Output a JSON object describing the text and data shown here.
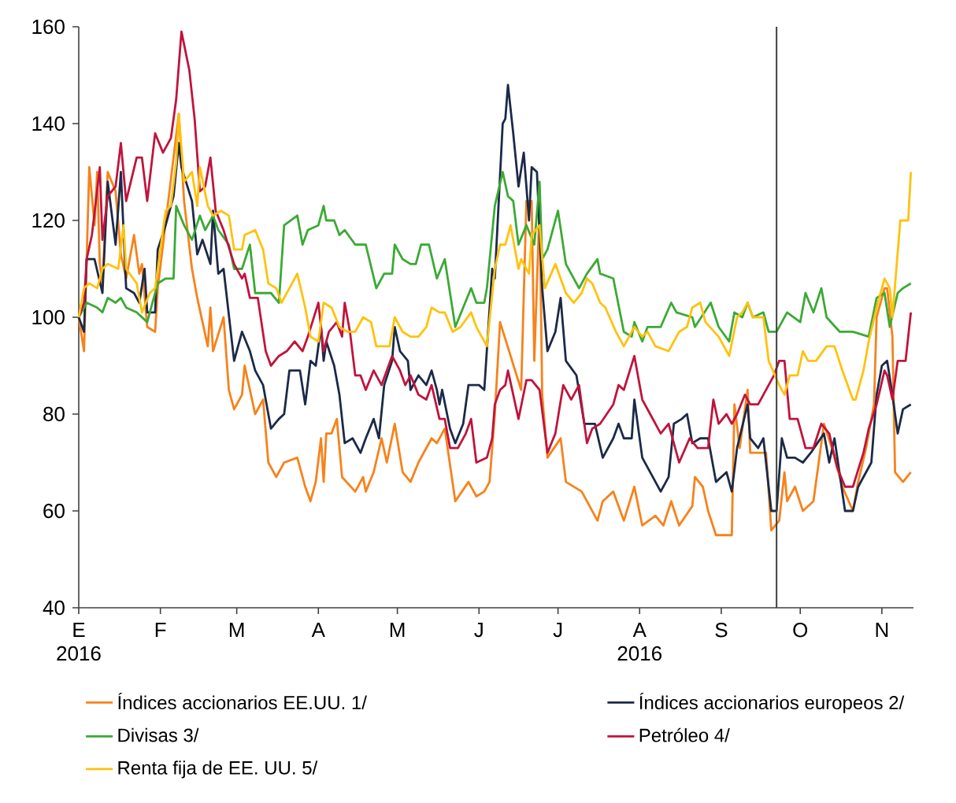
{
  "chart_data": {
    "type": "line",
    "xlim": [
      "2016-01-01",
      "2016-11-13"
    ],
    "ylim": [
      40,
      160
    ],
    "xticks": [
      {
        "value": "2016-01-01",
        "label": "E 2016"
      },
      {
        "value": "2016-02-01",
        "label": "F"
      },
      {
        "value": "2016-03-01",
        "label": "M"
      },
      {
        "value": "2016-04-01",
        "label": "A"
      },
      {
        "value": "2016-05-01",
        "label": "M"
      },
      {
        "value": "2016-06-01",
        "label": "J"
      },
      {
        "value": "2016-07-01",
        "label": "J"
      },
      {
        "value": "2016-08-01",
        "label": "A 2016"
      },
      {
        "value": "2016-09-01",
        "label": "S"
      },
      {
        "value": "2016-10-01",
        "label": "O"
      },
      {
        "value": "2016-11-01",
        "label": "N"
      }
    ],
    "yticks": [
      40,
      60,
      80,
      100,
      120,
      140,
      160
    ],
    "ref_lines": [
      {
        "axis": "x",
        "value": "2016-09-22",
        "color": "#404040"
      }
    ],
    "legend": "bottom",
    "marker": "none",
    "line_style": "solid",
    "series": [
      {
        "name": "Índices accionarios EE.UU. 1/",
        "color": "#f7821b",
        "x": [
          "2016-01-01",
          "2016-01-03",
          "2016-01-05",
          "2016-01-07",
          "2016-01-08",
          "2016-01-09",
          "2016-01-10",
          "2016-01-12",
          "2016-01-15",
          "2016-01-17",
          "2016-01-19",
          "2016-01-22",
          "2016-01-24",
          "2016-01-25",
          "2016-01-27",
          "2016-01-30",
          "2016-01-31",
          "2016-02-04",
          "2016-02-08",
          "2016-02-10",
          "2016-02-13",
          "2016-02-15",
          "2016-02-19",
          "2016-02-20",
          "2016-02-21",
          "2016-02-25",
          "2016-02-27",
          "2016-02-29",
          "2016-03-03",
          "2016-03-04",
          "2016-03-08",
          "2016-03-11",
          "2016-03-13",
          "2016-03-16",
          "2016-03-19",
          "2016-03-24",
          "2016-03-27",
          "2016-03-29",
          "2016-03-31",
          "2016-04-02",
          "2016-04-03",
          "2016-04-04",
          "2016-04-06",
          "2016-04-08",
          "2016-04-10",
          "2016-04-15",
          "2016-04-18",
          "2016-04-19",
          "2016-04-22",
          "2016-04-25",
          "2016-04-27",
          "2016-04-30",
          "2016-05-03",
          "2016-05-06",
          "2016-05-09",
          "2016-05-14",
          "2016-05-16",
          "2016-05-19",
          "2016-05-23",
          "2016-05-28",
          "2016-05-31",
          "2016-06-03",
          "2016-06-05",
          "2016-06-07",
          "2016-06-09",
          "2016-06-13",
          "2016-06-17",
          "2016-06-19",
          "2016-06-21",
          "2016-06-22",
          "2016-06-24",
          "2016-06-25",
          "2016-06-27",
          "2016-07-02",
          "2016-07-04",
          "2016-07-10",
          "2016-07-16",
          "2016-07-18",
          "2016-07-22",
          "2016-07-26",
          "2016-07-30",
          "2016-08-02",
          "2016-08-07",
          "2016-08-10",
          "2016-08-13",
          "2016-08-16",
          "2016-08-21",
          "2016-08-22",
          "2016-08-25",
          "2016-08-27",
          "2016-08-30",
          "2016-09-05",
          "2016-09-06",
          "2016-09-08",
          "2016-09-11",
          "2016-09-12",
          "2016-09-18",
          "2016-09-20",
          "2016-09-23",
          "2016-09-25",
          "2016-09-26",
          "2016-09-29",
          "2016-10-02",
          "2016-10-06",
          "2016-10-10",
          "2016-10-13",
          "2016-10-17",
          "2016-10-21",
          "2016-10-23",
          "2016-10-26",
          "2016-10-29",
          "2016-10-30",
          "2016-11-02",
          "2016-11-03",
          "2016-11-05",
          "2016-11-06",
          "2016-11-09",
          "2016-11-12"
        ],
        "values": [
          100,
          93,
          131,
          119,
          130,
          111,
          107,
          130,
          126,
          113,
          108,
          117,
          109,
          111,
          98,
          97,
          106,
          124,
          142,
          124,
          110,
          104,
          94,
          102,
          93,
          100,
          85,
          81,
          84,
          90,
          80,
          83,
          70,
          67,
          70,
          71,
          65,
          62,
          66,
          75,
          66,
          76,
          76,
          79,
          67,
          64,
          67,
          64,
          68,
          75,
          70,
          78,
          68,
          66,
          70,
          75,
          74,
          77,
          62,
          66,
          63,
          64,
          66,
          80,
          99,
          92,
          85,
          124,
          124,
          91,
          123,
          84,
          71,
          75,
          66,
          64,
          58,
          62,
          64,
          58,
          65,
          57,
          59,
          57,
          62,
          57,
          61,
          67,
          65,
          60,
          55,
          55,
          82,
          73,
          85,
          72,
          72,
          56,
          58,
          68,
          62,
          65,
          60,
          62,
          78,
          73,
          65,
          60,
          66,
          73,
          82,
          100,
          106,
          106,
          96,
          68,
          66,
          68
        ]
      },
      {
        "name": "Índices accionarios europeos 2/",
        "color": "#1c2a48",
        "x": [
          "2016-01-01",
          "2016-01-03",
          "2016-01-04",
          "2016-01-07",
          "2016-01-10",
          "2016-01-12",
          "2016-01-15",
          "2016-01-17",
          "2016-01-19",
          "2016-01-22",
          "2016-01-24",
          "2016-01-26",
          "2016-01-27",
          "2016-01-30",
          "2016-01-31",
          "2016-02-03",
          "2016-02-06",
          "2016-02-08",
          "2016-02-09",
          "2016-02-13",
          "2016-02-15",
          "2016-02-17",
          "2016-02-20",
          "2016-02-21",
          "2016-02-23",
          "2016-02-25",
          "2016-02-29",
          "2016-03-03",
          "2016-03-06",
          "2016-03-08",
          "2016-03-11",
          "2016-03-14",
          "2016-03-17",
          "2016-03-19",
          "2016-03-21",
          "2016-03-25",
          "2016-03-27",
          "2016-03-29",
          "2016-03-31",
          "2016-04-02",
          "2016-04-03",
          "2016-04-04",
          "2016-04-07",
          "2016-04-09",
          "2016-04-11",
          "2016-04-14",
          "2016-04-17",
          "2016-04-19",
          "2016-04-22",
          "2016-04-24",
          "2016-04-26",
          "2016-04-29",
          "2016-04-30",
          "2016-05-02",
          "2016-05-05",
          "2016-05-06",
          "2016-05-09",
          "2016-05-12",
          "2016-05-14",
          "2016-05-16",
          "2016-05-17",
          "2016-05-18",
          "2016-05-21",
          "2016-05-23",
          "2016-05-26",
          "2016-05-28",
          "2016-06-01",
          "2016-06-03",
          "2016-06-06",
          "2016-06-07",
          "2016-06-10",
          "2016-06-11",
          "2016-06-12",
          "2016-06-14",
          "2016-06-16",
          "2016-06-18",
          "2016-06-20",
          "2016-06-21",
          "2016-06-23",
          "2016-06-25",
          "2016-06-27",
          "2016-06-30",
          "2016-07-02",
          "2016-07-04",
          "2016-07-08",
          "2016-07-11",
          "2016-07-15",
          "2016-07-18",
          "2016-07-22",
          "2016-07-24",
          "2016-07-26",
          "2016-07-29",
          "2016-07-30",
          "2016-08-02",
          "2016-08-04",
          "2016-08-06",
          "2016-08-09",
          "2016-08-12",
          "2016-08-14",
          "2016-08-17",
          "2016-08-19",
          "2016-08-21",
          "2016-08-24",
          "2016-08-27",
          "2016-08-30",
          "2016-09-03",
          "2016-09-05",
          "2016-09-07",
          "2016-09-11",
          "2016-09-12",
          "2016-09-15",
          "2016-09-17",
          "2016-09-20",
          "2016-09-22",
          "2016-09-24",
          "2016-09-26",
          "2016-09-29",
          "2016-10-02",
          "2016-10-05",
          "2016-10-10",
          "2016-10-12",
          "2016-10-14",
          "2016-10-18",
          "2016-10-21",
          "2016-10-23",
          "2016-10-28",
          "2016-10-30",
          "2016-11-01",
          "2016-11-03",
          "2016-11-05",
          "2016-11-07",
          "2016-11-09",
          "2016-11-12"
        ],
        "values": [
          100,
          97,
          112,
          112,
          105,
          128,
          115,
          130,
          106,
          105,
          103,
          110,
          101,
          101,
          114,
          119,
          125,
          136,
          131,
          124,
          113,
          116,
          111,
          122,
          109,
          110,
          91,
          97,
          93,
          89,
          86,
          77,
          79,
          80,
          89,
          89,
          82,
          91,
          90,
          98,
          91,
          95,
          90,
          84,
          74,
          75,
          72,
          75,
          79,
          75,
          86,
          91,
          98,
          93,
          91,
          85,
          88,
          86,
          89,
          85,
          82,
          85,
          77,
          74,
          78,
          86,
          86,
          85,
          110,
          108,
          140,
          141,
          148,
          138,
          127,
          134,
          120,
          131,
          130,
          106,
          93,
          97,
          104,
          91,
          88,
          78,
          78,
          71,
          75,
          78,
          75,
          75,
          83,
          71,
          69,
          67,
          64,
          67,
          78,
          79,
          80,
          74,
          75,
          75,
          66,
          68,
          64,
          73,
          82,
          75,
          73,
          75,
          60,
          60,
          75,
          71,
          71,
          70,
          72,
          76,
          70,
          75,
          60,
          60,
          65,
          70,
          84,
          90,
          91,
          84,
          76,
          81,
          82
        ]
      },
      {
        "name": "Divisas 3/",
        "color": "#3aaa35",
        "x": [
          "2016-01-01",
          "2016-01-04",
          "2016-01-08",
          "2016-01-10",
          "2016-01-12",
          "2016-01-15",
          "2016-01-17",
          "2016-01-19",
          "2016-01-23",
          "2016-01-27",
          "2016-01-31",
          "2016-02-03",
          "2016-02-06",
          "2016-02-07",
          "2016-02-10",
          "2016-02-13",
          "2016-02-16",
          "2016-02-18",
          "2016-02-21",
          "2016-02-23",
          "2016-02-27",
          "2016-02-29",
          "2016-03-03",
          "2016-03-06",
          "2016-03-08",
          "2016-03-11",
          "2016-03-14",
          "2016-03-17",
          "2016-03-19",
          "2016-03-24",
          "2016-03-26",
          "2016-03-28",
          "2016-04-01",
          "2016-04-03",
          "2016-04-04",
          "2016-04-07",
          "2016-04-09",
          "2016-04-11",
          "2016-04-15",
          "2016-04-19",
          "2016-04-23",
          "2016-04-26",
          "2016-04-29",
          "2016-04-30",
          "2016-05-03",
          "2016-05-06",
          "2016-05-08",
          "2016-05-10",
          "2016-05-13",
          "2016-05-16",
          "2016-05-19",
          "2016-05-23",
          "2016-05-29",
          "2016-05-31",
          "2016-06-03",
          "2016-06-04",
          "2016-06-07",
          "2016-06-10",
          "2016-06-12",
          "2016-06-14",
          "2016-06-16",
          "2016-06-19",
          "2016-06-22",
          "2016-06-24",
          "2016-06-25",
          "2016-06-27",
          "2016-07-01",
          "2016-07-04",
          "2016-07-09",
          "2016-07-12",
          "2016-07-16",
          "2016-07-17",
          "2016-07-22",
          "2016-07-26",
          "2016-07-29",
          "2016-07-30",
          "2016-08-02",
          "2016-08-04",
          "2016-08-09",
          "2016-08-13",
          "2016-08-15",
          "2016-08-21",
          "2016-08-22",
          "2016-08-28",
          "2016-08-31",
          "2016-09-04",
          "2016-09-06",
          "2016-09-09",
          "2016-09-11",
          "2016-09-13",
          "2016-09-17",
          "2016-09-19",
          "2016-09-22",
          "2016-09-26",
          "2016-10-01",
          "2016-10-03",
          "2016-10-06",
          "2016-10-09",
          "2016-10-11",
          "2016-10-16",
          "2016-10-21",
          "2016-10-27",
          "2016-10-30",
          "2016-11-02",
          "2016-11-04",
          "2016-11-07",
          "2016-11-09",
          "2016-11-12"
        ],
        "values": [
          100,
          103,
          102,
          101,
          104,
          103,
          104,
          102,
          101,
          99,
          107,
          108,
          108,
          123,
          119,
          116,
          121,
          118,
          121,
          118,
          115,
          110,
          110,
          115,
          105,
          105,
          105,
          103,
          119,
          121,
          115,
          118,
          119,
          123,
          120,
          120,
          117,
          118,
          115,
          115,
          106,
          109,
          109,
          115,
          112,
          111,
          111,
          115,
          115,
          108,
          112,
          98,
          106,
          103,
          103,
          106,
          123,
          130,
          125,
          124,
          115,
          119,
          115,
          128,
          112,
          114,
          122,
          111,
          106,
          109,
          112,
          109,
          108,
          97,
          96,
          99,
          95,
          98,
          98,
          103,
          101,
          100,
          98,
          103,
          98,
          95,
          101,
          100,
          103,
          100,
          101,
          97,
          97,
          101,
          99,
          105,
          101,
          106,
          100,
          97,
          97,
          96,
          104,
          105,
          98,
          105,
          106,
          107
        ]
      },
      {
        "name": "Petróleo 4/",
        "color": "#c0143c",
        "x": [
          "2016-01-01",
          "2016-01-03",
          "2016-01-04",
          "2016-01-06",
          "2016-01-09",
          "2016-01-10",
          "2016-01-12",
          "2016-01-15",
          "2016-01-17",
          "2016-01-19",
          "2016-01-23",
          "2016-01-25",
          "2016-01-27",
          "2016-01-30",
          "2016-02-02",
          "2016-02-05",
          "2016-02-07",
          "2016-02-09",
          "2016-02-12",
          "2016-02-14",
          "2016-02-16",
          "2016-02-18",
          "2016-02-20",
          "2016-02-22",
          "2016-02-25",
          "2016-02-29",
          "2016-03-03",
          "2016-03-04",
          "2016-03-06",
          "2016-03-09",
          "2016-03-12",
          "2016-03-14",
          "2016-03-17",
          "2016-03-20",
          "2016-03-23",
          "2016-03-26",
          "2016-03-28",
          "2016-04-01",
          "2016-04-03",
          "2016-04-05",
          "2016-04-08",
          "2016-04-10",
          "2016-04-11",
          "2016-04-13",
          "2016-04-15",
          "2016-04-17",
          "2016-04-19",
          "2016-04-22",
          "2016-04-25",
          "2016-04-29",
          "2016-05-02",
          "2016-05-04",
          "2016-05-06",
          "2016-05-09",
          "2016-05-12",
          "2016-05-14",
          "2016-05-17",
          "2016-05-19",
          "2016-05-21",
          "2016-05-24",
          "2016-05-27",
          "2016-05-29",
          "2016-05-31",
          "2016-06-04",
          "2016-06-06",
          "2016-06-07",
          "2016-06-09",
          "2016-06-11",
          "2016-06-12",
          "2016-06-14",
          "2016-06-16",
          "2016-06-19",
          "2016-06-21",
          "2016-06-24",
          "2016-06-27",
          "2016-06-30",
          "2016-07-03",
          "2016-07-06",
          "2016-07-09",
          "2016-07-12",
          "2016-07-14",
          "2016-07-17",
          "2016-07-22",
          "2016-07-24",
          "2016-07-26",
          "2016-07-30",
          "2016-08-02",
          "2016-08-05",
          "2016-08-09",
          "2016-08-12",
          "2016-08-16",
          "2016-08-20",
          "2016-08-23",
          "2016-08-27",
          "2016-08-29",
          "2016-08-31",
          "2016-09-03",
          "2016-09-05",
          "2016-09-07",
          "2016-09-10",
          "2016-09-12",
          "2016-09-15",
          "2016-09-19",
          "2016-09-21",
          "2016-09-23",
          "2016-09-25",
          "2016-09-27",
          "2016-09-30",
          "2016-10-03",
          "2016-10-06",
          "2016-10-09",
          "2016-10-12",
          "2016-10-15",
          "2016-10-18",
          "2016-10-21",
          "2016-10-25",
          "2016-10-27",
          "2016-10-30",
          "2016-11-02",
          "2016-11-03",
          "2016-11-05",
          "2016-11-07",
          "2016-11-10",
          "2016-11-12"
        ],
        "values": [
          100,
          103,
          112,
          117,
          131,
          116,
          125,
          127,
          136,
          124,
          133,
          133,
          124,
          138,
          134,
          137,
          145,
          159,
          151,
          141,
          126,
          127,
          133,
          122,
          118,
          111,
          108,
          109,
          104,
          104,
          93,
          90,
          92,
          93,
          95,
          93,
          96,
          103,
          93,
          97,
          99,
          96,
          103,
          97,
          88,
          88,
          85,
          89,
          86,
          92,
          89,
          86,
          88,
          84,
          83,
          86,
          79,
          79,
          73,
          73,
          76,
          79,
          70,
          71,
          75,
          82,
          85,
          86,
          89,
          84,
          79,
          87,
          87,
          85,
          72,
          76,
          86,
          83,
          86,
          74,
          77,
          78,
          82,
          86,
          85,
          92,
          83,
          80,
          76,
          78,
          70,
          75,
          73,
          73,
          83,
          78,
          80,
          78,
          80,
          84,
          82,
          82,
          86,
          88,
          91,
          91,
          79,
          79,
          73,
          73,
          78,
          76,
          69,
          65,
          65,
          72,
          77,
          82,
          89,
          88,
          83,
          91,
          91,
          101
        ]
      },
      {
        "name": "Renta fija de EE. UU. 5/",
        "color": "#ffc20e",
        "x": [
          "2016-01-01",
          "2016-01-03",
          "2016-01-05",
          "2016-01-08",
          "2016-01-10",
          "2016-01-12",
          "2016-01-16",
          "2016-01-18",
          "2016-01-19",
          "2016-01-23",
          "2016-01-25",
          "2016-01-28",
          "2016-01-30",
          "2016-02-03",
          "2016-02-05",
          "2016-02-07",
          "2016-02-08",
          "2016-02-10",
          "2016-02-13",
          "2016-02-15",
          "2016-02-16",
          "2016-02-19",
          "2016-02-21",
          "2016-02-24",
          "2016-02-27",
          "2016-02-29",
          "2016-03-03",
          "2016-03-04",
          "2016-03-08",
          "2016-03-11",
          "2016-03-13",
          "2016-03-16",
          "2016-03-18",
          "2016-03-21",
          "2016-03-24",
          "2016-03-27",
          "2016-03-29",
          "2016-04-01",
          "2016-04-03",
          "2016-04-06",
          "2016-04-09",
          "2016-04-12",
          "2016-04-15",
          "2016-04-18",
          "2016-04-21",
          "2016-04-23",
          "2016-04-28",
          "2016-04-30",
          "2016-05-03",
          "2016-05-06",
          "2016-05-09",
          "2016-05-12",
          "2016-05-14",
          "2016-05-17",
          "2016-05-19",
          "2016-05-22",
          "2016-05-25",
          "2016-05-29",
          "2016-05-31",
          "2016-06-04",
          "2016-06-07",
          "2016-06-09",
          "2016-06-11",
          "2016-06-13",
          "2016-06-16",
          "2016-06-17",
          "2016-06-20",
          "2016-06-21",
          "2016-06-24",
          "2016-06-26",
          "2016-06-30",
          "2016-07-04",
          "2016-07-07",
          "2016-07-10",
          "2016-07-12",
          "2016-07-14",
          "2016-07-17",
          "2016-07-19",
          "2016-07-23",
          "2016-07-26",
          "2016-07-30",
          "2016-08-02",
          "2016-08-04",
          "2016-08-07",
          "2016-08-12",
          "2016-08-16",
          "2016-08-19",
          "2016-08-21",
          "2016-08-24",
          "2016-08-26",
          "2016-08-31",
          "2016-09-04",
          "2016-09-07",
          "2016-09-09",
          "2016-09-11",
          "2016-09-13",
          "2016-09-17",
          "2016-09-19",
          "2016-09-23",
          "2016-09-25",
          "2016-09-27",
          "2016-09-30",
          "2016-10-02",
          "2016-10-04",
          "2016-10-07",
          "2016-10-11",
          "2016-10-14",
          "2016-10-17",
          "2016-10-21",
          "2016-10-22",
          "2016-10-25",
          "2016-10-27",
          "2016-10-30",
          "2016-11-02",
          "2016-11-04",
          "2016-11-05",
          "2016-11-08",
          "2016-11-11",
          "2016-11-12"
        ],
        "values": [
          100,
          106,
          107,
          106,
          110,
          111,
          110,
          119,
          110,
          107,
          101,
          105,
          106,
          122,
          123,
          132,
          142,
          128,
          130,
          123,
          131,
          123,
          121,
          122,
          121,
          114,
          114,
          117,
          118,
          114,
          107,
          106,
          103,
          106,
          109,
          102,
          96,
          95,
          103,
          102,
          98,
          97,
          97,
          100,
          99,
          94,
          94,
          100,
          97,
          96,
          96,
          98,
          102,
          101,
          101,
          97,
          98,
          101,
          98,
          94,
          110,
          115,
          115,
          119,
          110,
          112,
          109,
          117,
          119,
          106,
          111,
          105,
          103,
          105,
          108,
          107,
          103,
          102,
          97,
          94,
          98,
          96,
          97,
          94,
          93,
          97,
          98,
          102,
          103,
          99,
          96,
          92,
          100,
          101,
          103,
          100,
          100,
          91,
          86,
          84,
          88,
          88,
          93,
          91,
          91,
          94,
          94,
          89,
          83,
          83,
          89,
          95,
          102,
          108,
          106,
          100,
          120,
          120,
          130
        ]
      }
    ]
  }
}
